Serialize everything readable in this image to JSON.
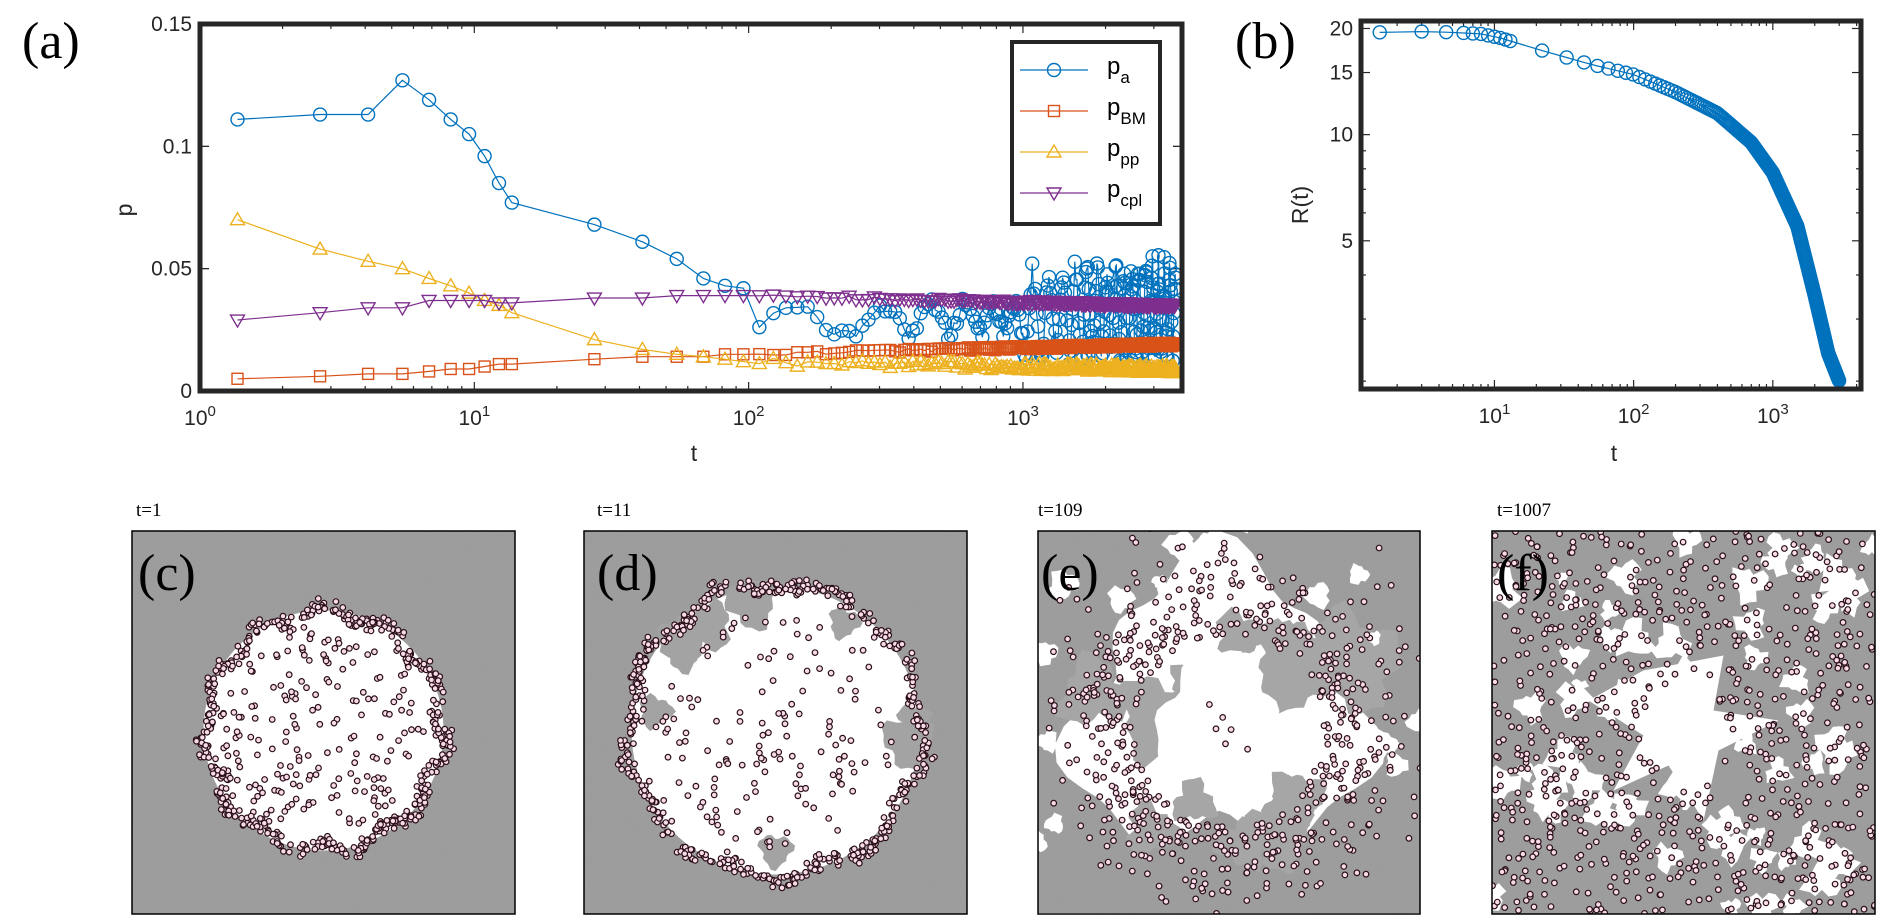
{
  "panels": {
    "a": "(a)",
    "b": "(b)",
    "c": "(c)",
    "d": "(d)",
    "e": "(e)",
    "f": "(f)"
  },
  "snapshots": [
    {
      "letter": "(c)",
      "time": "t=1"
    },
    {
      "letter": "(d)",
      "time": "t=11"
    },
    {
      "letter": "(e)",
      "time": "t=109"
    },
    {
      "letter": "(f)",
      "time": "t=1007"
    }
  ],
  "chart_data": [
    {
      "id": "a",
      "type": "line",
      "xscale": "log",
      "xlim": [
        1,
        3800
      ],
      "ylim": [
        0,
        0.15
      ],
      "xlabel": "t",
      "ylabel": "p",
      "yticks": [
        "0",
        "0.05",
        "0.1",
        "0.15"
      ],
      "xticks": [
        {
          "base": "10",
          "exp": "0"
        },
        {
          "base": "10",
          "exp": "1"
        },
        {
          "base": "10",
          "exp": "2"
        },
        {
          "base": "10",
          "exp": "3"
        }
      ],
      "legend": "top-right",
      "series": [
        {
          "name": "p",
          "sub": "a",
          "marker": "circle",
          "color": "#0072BD",
          "x": [
            1.37,
            2.74,
            4.1,
            5.47,
            6.84,
            8.2,
            9.57,
            10.9,
            12.3,
            13.7,
            27.4,
            41,
            54.7,
            68.4,
            82,
            95.7
          ],
          "y": [
            0.111,
            0.113,
            0.113,
            0.127,
            0.119,
            0.111,
            0.105,
            0.096,
            0.085,
            0.077,
            0.068,
            0.061,
            0.054,
            0.046,
            0.043,
            0.042
          ]
        },
        {
          "name": "p",
          "sub": "BM",
          "marker": "square",
          "color": "#D95319",
          "x": [
            1.37,
            2.74,
            4.1,
            5.47,
            6.84,
            8.2,
            9.57,
            10.9,
            12.3,
            13.7,
            27.4,
            41,
            54.7,
            68.4,
            82,
            95.7
          ],
          "y": [
            0.005,
            0.006,
            0.007,
            0.007,
            0.008,
            0.009,
            0.009,
            0.01,
            0.011,
            0.011,
            0.013,
            0.014,
            0.014,
            0.014,
            0.015,
            0.015
          ]
        },
        {
          "name": "p",
          "sub": "pp",
          "marker": "triangle-up",
          "color": "#EDB120",
          "x": [
            1.37,
            2.74,
            4.1,
            5.47,
            6.84,
            8.2,
            9.57,
            10.9,
            12.3,
            13.7,
            27.4,
            41,
            54.7,
            68.4,
            82,
            95.7
          ],
          "y": [
            0.07,
            0.058,
            0.053,
            0.05,
            0.046,
            0.043,
            0.04,
            0.037,
            0.035,
            0.032,
            0.021,
            0.017,
            0.015,
            0.014,
            0.013,
            0.012
          ]
        },
        {
          "name": "p",
          "sub": "cpl",
          "marker": "triangle-down",
          "color": "#7E2F8E",
          "x": [
            1.37,
            2.74,
            4.1,
            5.47,
            6.84,
            8.2,
            9.57,
            10.9,
            12.3,
            13.7,
            27.4,
            41,
            54.7,
            68.4,
            82,
            95.7
          ],
          "y": [
            0.029,
            0.032,
            0.034,
            0.034,
            0.037,
            0.037,
            0.037,
            0.037,
            0.036,
            0.036,
            0.038,
            0.038,
            0.039,
            0.039,
            0.039,
            0.039
          ]
        }
      ]
    },
    {
      "id": "b",
      "type": "line",
      "xscale": "log",
      "yscale": "log",
      "xlim": [
        1.1,
        4300
      ],
      "ylim": [
        1.9,
        21
      ],
      "xlabel": "t",
      "ylabel": "R(t)",
      "yticks": [
        "5",
        "10",
        "15",
        "20"
      ],
      "xticks": [
        {
          "base": "10",
          "exp": "1"
        },
        {
          "base": "10",
          "exp": "2"
        },
        {
          "base": "10",
          "exp": "3"
        }
      ],
      "series": [
        {
          "name": "R(t)",
          "marker": "circle",
          "color": "#0072BD",
          "x": [
            1.5,
            3,
            5,
            8,
            11,
            20,
            50,
            100,
            200,
            400,
            700,
            1000,
            1500,
            2000,
            2500,
            3000
          ],
          "y": [
            19.5,
            19.6,
            19.5,
            19.3,
            18.8,
            17.5,
            15.8,
            14.8,
            13.2,
            11.5,
            9.5,
            7.8,
            5.5,
            3.5,
            2.4,
            2.0
          ]
        }
      ]
    }
  ]
}
